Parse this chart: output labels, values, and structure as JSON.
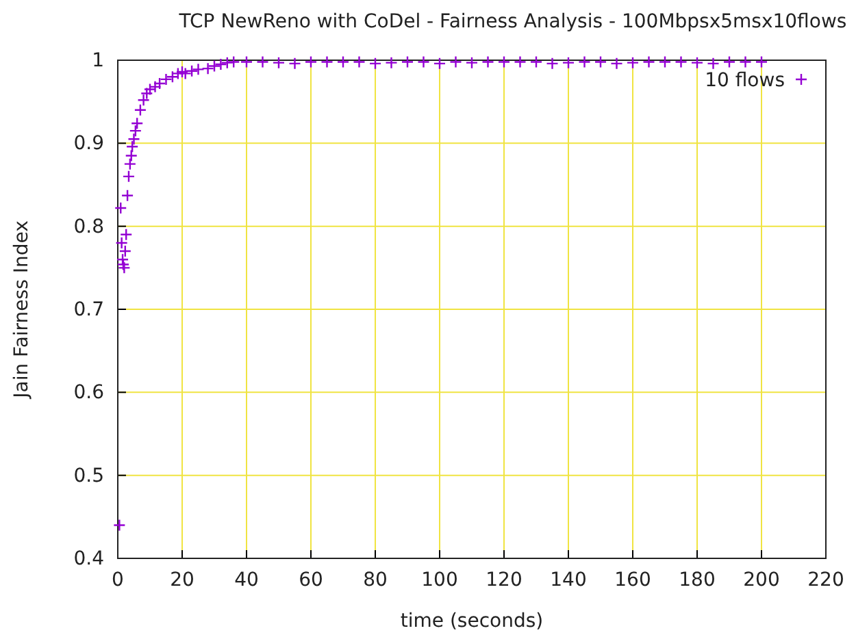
{
  "chart_data": {
    "type": "scatter",
    "title": "TCP NewReno with CoDel - Fairness Analysis - 100Mbpsx5msx10flows",
    "xlabel": "time (seconds)",
    "ylabel": "Jain Fairness Index",
    "xlim": [
      0,
      220
    ],
    "xticks": [
      0,
      20,
      40,
      60,
      80,
      100,
      120,
      140,
      160,
      180,
      200,
      220
    ],
    "ylim": [
      0.4,
      1
    ],
    "yticks": [
      0.4,
      0.5,
      0.6,
      0.7,
      0.8,
      0.9,
      1
    ],
    "grid": true,
    "legend": "top right",
    "marker": "cross",
    "series": [
      {
        "name": "10 flows",
        "color": "#9400d3",
        "x": [
          0.5,
          0.9,
          1.2,
          1.5,
          1.7,
          2,
          2.3,
          2.6,
          3,
          3.4,
          3.8,
          4.2,
          4.5,
          5,
          5.5,
          6,
          7,
          8,
          9,
          10,
          11.6,
          13,
          15,
          17,
          18.7,
          20,
          21,
          23,
          25,
          28,
          30,
          32,
          34,
          36,
          40,
          45,
          50,
          55,
          60,
          65,
          70,
          75,
          80,
          85,
          90,
          95,
          100,
          105,
          110,
          115,
          120,
          125,
          130,
          135,
          140,
          145,
          150,
          155,
          160,
          165,
          170,
          175,
          180,
          185,
          190,
          195,
          200
        ],
        "values": [
          0.44,
          0.822,
          0.78,
          0.76,
          0.754,
          0.75,
          0.77,
          0.79,
          0.837,
          0.86,
          0.875,
          0.885,
          0.896,
          0.905,
          0.915,
          0.924,
          0.94,
          0.952,
          0.96,
          0.965,
          0.968,
          0.972,
          0.977,
          0.98,
          0.984,
          0.986,
          0.984,
          0.987,
          0.989,
          0.99,
          0.993,
          0.995,
          0.997,
          0.998,
          0.998,
          0.998,
          0.997,
          0.996,
          0.998,
          0.998,
          0.998,
          0.998,
          0.996,
          0.997,
          0.998,
          0.998,
          0.996,
          0.998,
          0.997,
          0.998,
          0.998,
          0.998,
          0.998,
          0.996,
          0.997,
          0.998,
          0.998,
          0.996,
          0.997,
          0.998,
          0.998,
          0.998,
          0.997,
          0.996,
          0.998,
          0.998,
          0.998
        ]
      }
    ]
  }
}
